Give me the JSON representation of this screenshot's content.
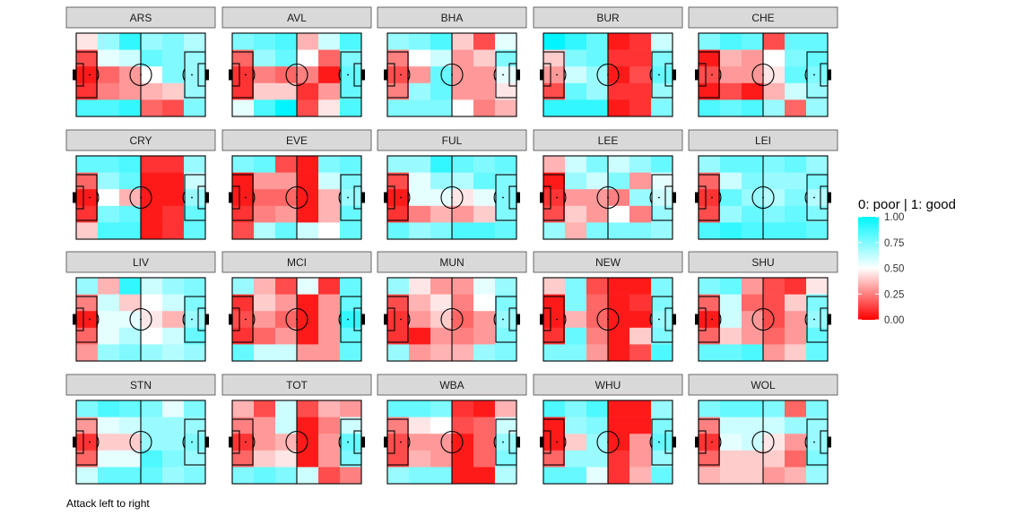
{
  "chart_data": {
    "type": "heatmap",
    "layout": "facet-grid",
    "grid_rows": 4,
    "grid_cols": 5,
    "cell_grid": {
      "cols": 6,
      "rows": 5
    },
    "scale": {
      "min": 0,
      "max": 1,
      "colors": {
        "low": "#ff0000",
        "mid": "#ffffff",
        "high": "#00f5ff"
      }
    },
    "legend": {
      "title": "0: poor | 1: good",
      "ticks": [
        {
          "value": 1.0,
          "label": "1.00"
        },
        {
          "value": 0.75,
          "label": "0.75"
        },
        {
          "value": 0.5,
          "label": "0.50"
        },
        {
          "value": 0.25,
          "label": "0.25"
        },
        {
          "value": 0.0,
          "label": "0.00"
        }
      ],
      "position": "right"
    },
    "caption": "Attack left to right",
    "teams": [
      {
        "name": "ARS",
        "cells": [
          [
            0.45,
            0.7,
            0.9,
            0.7,
            0.75,
            0.65
          ],
          [
            0.15,
            0.55,
            0.6,
            0.8,
            0.75,
            0.7
          ],
          [
            0.05,
            0.2,
            0.3,
            0.5,
            0.75,
            0.7
          ],
          [
            0.1,
            0.25,
            0.3,
            0.35,
            0.4,
            0.7
          ],
          [
            0.85,
            0.85,
            0.9,
            0.2,
            0.15,
            0.75
          ]
        ]
      },
      {
        "name": "AVL",
        "cells": [
          [
            0.75,
            0.8,
            0.85,
            0.35,
            0.6,
            0.85
          ],
          [
            0.2,
            0.7,
            0.8,
            0.5,
            0.2,
            0.75
          ],
          [
            0.1,
            0.25,
            0.2,
            0.25,
            0.05,
            0.8
          ],
          [
            0.1,
            0.4,
            0.4,
            0.1,
            0.3,
            0.8
          ],
          [
            0.55,
            0.85,
            1.0,
            0.15,
            0.45,
            0.85
          ]
        ]
      },
      {
        "name": "BHA",
        "cells": [
          [
            0.7,
            0.75,
            0.85,
            0.4,
            0.15,
            0.55
          ],
          [
            0.25,
            0.5,
            0.6,
            0.3,
            0.4,
            0.75
          ],
          [
            0.15,
            0.3,
            0.8,
            0.3,
            0.3,
            0.55
          ],
          [
            0.25,
            0.7,
            0.8,
            0.3,
            0.3,
            0.45
          ],
          [
            0.75,
            0.75,
            0.75,
            0.5,
            0.25,
            0.35
          ]
        ]
      },
      {
        "name": "BUR",
        "cells": [
          [
            1.0,
            0.9,
            0.8,
            0.05,
            0.1,
            0.6
          ],
          [
            0.4,
            0.75,
            0.8,
            0.1,
            0.1,
            0.75
          ],
          [
            0.3,
            0.6,
            0.7,
            0.05,
            0.15,
            0.8
          ],
          [
            0.15,
            0.8,
            0.7,
            0.1,
            0.1,
            0.7
          ],
          [
            0.9,
            0.9,
            0.9,
            0.05,
            0.1,
            0.75
          ]
        ]
      },
      {
        "name": "CHE",
        "cells": [
          [
            0.75,
            0.85,
            0.8,
            0.15,
            0.8,
            0.8
          ],
          [
            0.05,
            0.35,
            0.3,
            0.5,
            0.75,
            0.8
          ],
          [
            0.15,
            0.3,
            0.3,
            0.45,
            0.8,
            0.75
          ],
          [
            0.05,
            0.15,
            0.05,
            0.35,
            0.6,
            0.7
          ],
          [
            0.85,
            0.8,
            0.85,
            0.7,
            0.2,
            0.7
          ]
        ]
      },
      {
        "name": "CRY",
        "cells": [
          [
            0.8,
            0.8,
            0.85,
            0.1,
            0.1,
            0.7
          ],
          [
            0.2,
            0.7,
            0.8,
            0.05,
            0.05,
            0.6
          ],
          [
            0.05,
            0.5,
            0.35,
            0.05,
            0.05,
            0.7
          ],
          [
            0.1,
            0.75,
            0.8,
            0.05,
            0.1,
            0.8
          ],
          [
            0.4,
            0.85,
            0.85,
            0.05,
            0.1,
            0.8
          ]
        ]
      },
      {
        "name": "EVE",
        "cells": [
          [
            0.75,
            0.8,
            0.15,
            0.05,
            0.75,
            0.8
          ],
          [
            0.05,
            0.3,
            0.3,
            0.05,
            0.6,
            0.75
          ],
          [
            0.05,
            0.2,
            0.2,
            0.05,
            0.35,
            0.7
          ],
          [
            0.1,
            0.25,
            0.3,
            0.05,
            0.35,
            0.8
          ],
          [
            0.15,
            0.65,
            0.8,
            0.6,
            0.5,
            0.8
          ]
        ]
      },
      {
        "name": "FUL",
        "cells": [
          [
            0.7,
            0.7,
            0.9,
            0.8,
            0.75,
            0.8
          ],
          [
            0.15,
            0.55,
            0.7,
            0.65,
            0.8,
            0.75
          ],
          [
            0.05,
            0.55,
            0.55,
            0.45,
            0.55,
            0.75
          ],
          [
            0.1,
            0.25,
            0.35,
            0.3,
            0.4,
            0.75
          ],
          [
            0.8,
            0.7,
            0.75,
            0.85,
            0.85,
            0.8
          ]
        ]
      },
      {
        "name": "LEE",
        "cells": [
          [
            0.35,
            0.6,
            0.75,
            0.6,
            0.7,
            0.8
          ],
          [
            0.05,
            0.7,
            0.6,
            0.75,
            0.3,
            0.55
          ],
          [
            0.1,
            0.3,
            0.3,
            0.25,
            0.7,
            0.6
          ],
          [
            0.15,
            0.4,
            0.3,
            0.5,
            0.25,
            0.7
          ],
          [
            0.7,
            0.35,
            0.75,
            0.75,
            0.75,
            0.7
          ]
        ]
      },
      {
        "name": "LEI",
        "cells": [
          [
            0.7,
            0.8,
            0.8,
            0.75,
            0.8,
            0.7
          ],
          [
            0.2,
            0.6,
            0.75,
            0.7,
            0.7,
            0.75
          ],
          [
            0.1,
            0.8,
            0.7,
            0.65,
            0.75,
            0.65
          ],
          [
            0.15,
            0.7,
            0.8,
            0.75,
            0.8,
            0.75
          ],
          [
            0.85,
            0.9,
            0.85,
            0.85,
            0.85,
            0.8
          ]
        ]
      },
      {
        "name": "LIV",
        "cells": [
          [
            0.7,
            0.35,
            0.9,
            0.6,
            0.7,
            0.75
          ],
          [
            0.25,
            0.6,
            0.4,
            0.5,
            0.6,
            0.75
          ],
          [
            0.05,
            0.55,
            0.55,
            0.45,
            0.35,
            0.7
          ],
          [
            0.2,
            0.55,
            0.65,
            0.5,
            0.6,
            0.8
          ],
          [
            0.3,
            0.7,
            0.75,
            0.7,
            0.65,
            0.7
          ]
        ]
      },
      {
        "name": "MCI",
        "cells": [
          [
            0.7,
            0.35,
            0.15,
            0.55,
            0.1,
            0.8
          ],
          [
            0.1,
            0.4,
            0.3,
            0.05,
            0.3,
            0.8
          ],
          [
            0.15,
            0.3,
            0.2,
            0.05,
            0.3,
            0.9
          ],
          [
            0.1,
            0.2,
            0.3,
            0.05,
            0.3,
            0.8
          ],
          [
            0.8,
            0.6,
            0.6,
            0.3,
            0.3,
            0.8
          ]
        ]
      },
      {
        "name": "MUN",
        "cells": [
          [
            0.7,
            0.45,
            0.3,
            0.3,
            0.55,
            0.7
          ],
          [
            0.15,
            0.35,
            0.45,
            0.25,
            0.5,
            0.75
          ],
          [
            0.1,
            0.3,
            0.4,
            0.2,
            0.3,
            0.7
          ],
          [
            0.1,
            0.05,
            0.3,
            0.25,
            0.3,
            0.75
          ],
          [
            0.7,
            0.3,
            0.35,
            0.35,
            0.7,
            0.75
          ]
        ]
      },
      {
        "name": "NEW",
        "cells": [
          [
            0.4,
            0.75,
            0.15,
            0.05,
            0.05,
            0.75
          ],
          [
            0.05,
            0.75,
            0.2,
            0.05,
            0.1,
            0.75
          ],
          [
            0.05,
            0.35,
            0.2,
            0.05,
            0.05,
            0.7
          ],
          [
            0.1,
            0.8,
            0.25,
            0.05,
            0.4,
            0.75
          ],
          [
            0.75,
            0.75,
            0.3,
            0.05,
            0.15,
            0.85
          ]
        ]
      },
      {
        "name": "SHU",
        "cells": [
          [
            0.75,
            0.8,
            0.3,
            0.15,
            0.1,
            0.45
          ],
          [
            0.2,
            0.6,
            0.2,
            0.15,
            0.4,
            0.75
          ],
          [
            0.05,
            0.6,
            0.3,
            0.15,
            0.3,
            0.7
          ],
          [
            0.2,
            0.4,
            0.3,
            0.2,
            0.3,
            0.8
          ],
          [
            0.8,
            0.8,
            0.85,
            0.3,
            0.4,
            0.8
          ]
        ]
      },
      {
        "name": "STN",
        "cells": [
          [
            0.75,
            0.85,
            0.8,
            0.75,
            0.55,
            0.75
          ],
          [
            0.3,
            0.55,
            0.6,
            0.7,
            0.7,
            0.7
          ],
          [
            0.1,
            0.4,
            0.4,
            0.7,
            0.7,
            0.75
          ],
          [
            0.2,
            0.55,
            0.55,
            0.85,
            0.75,
            0.7
          ],
          [
            0.6,
            0.8,
            0.8,
            0.8,
            0.7,
            0.75
          ]
        ]
      },
      {
        "name": "TOT",
        "cells": [
          [
            0.35,
            0.15,
            0.6,
            0.15,
            0.35,
            0.3
          ],
          [
            0.25,
            0.3,
            0.6,
            0.05,
            0.25,
            0.6
          ],
          [
            0.1,
            0.3,
            0.35,
            0.05,
            0.3,
            0.8
          ],
          [
            0.2,
            0.4,
            0.45,
            0.05,
            0.3,
            0.75
          ],
          [
            0.75,
            0.8,
            0.75,
            0.6,
            0.15,
            0.25
          ]
        ]
      },
      {
        "name": "WBA",
        "cells": [
          [
            0.8,
            0.8,
            0.75,
            0.1,
            0.05,
            0.35
          ],
          [
            0.25,
            0.45,
            0.5,
            0.15,
            0.2,
            0.6
          ],
          [
            0.15,
            0.3,
            0.3,
            0.05,
            0.2,
            0.7
          ],
          [
            0.15,
            0.35,
            0.3,
            0.05,
            0.2,
            0.75
          ],
          [
            0.7,
            0.75,
            0.75,
            0.05,
            0.05,
            0.65
          ]
        ]
      },
      {
        "name": "WHU",
        "cells": [
          [
            0.85,
            0.75,
            0.85,
            0.05,
            0.05,
            0.7
          ],
          [
            0.05,
            0.7,
            0.75,
            0.05,
            0.05,
            0.75
          ],
          [
            0.05,
            0.4,
            0.7,
            0.05,
            0.3,
            0.8
          ],
          [
            0.2,
            0.7,
            0.7,
            0.1,
            0.3,
            0.7
          ],
          [
            0.8,
            0.8,
            0.55,
            0.1,
            0.35,
            0.8
          ]
        ]
      },
      {
        "name": "WOL",
        "cells": [
          [
            0.75,
            0.8,
            0.8,
            0.75,
            0.2,
            0.75
          ],
          [
            0.25,
            0.6,
            0.6,
            0.6,
            0.7,
            0.7
          ],
          [
            0.1,
            0.55,
            0.6,
            0.45,
            0.3,
            0.7
          ],
          [
            0.2,
            0.4,
            0.4,
            0.4,
            0.2,
            0.75
          ],
          [
            0.35,
            0.4,
            0.4,
            0.3,
            0.35,
            0.7
          ]
        ]
      }
    ]
  }
}
